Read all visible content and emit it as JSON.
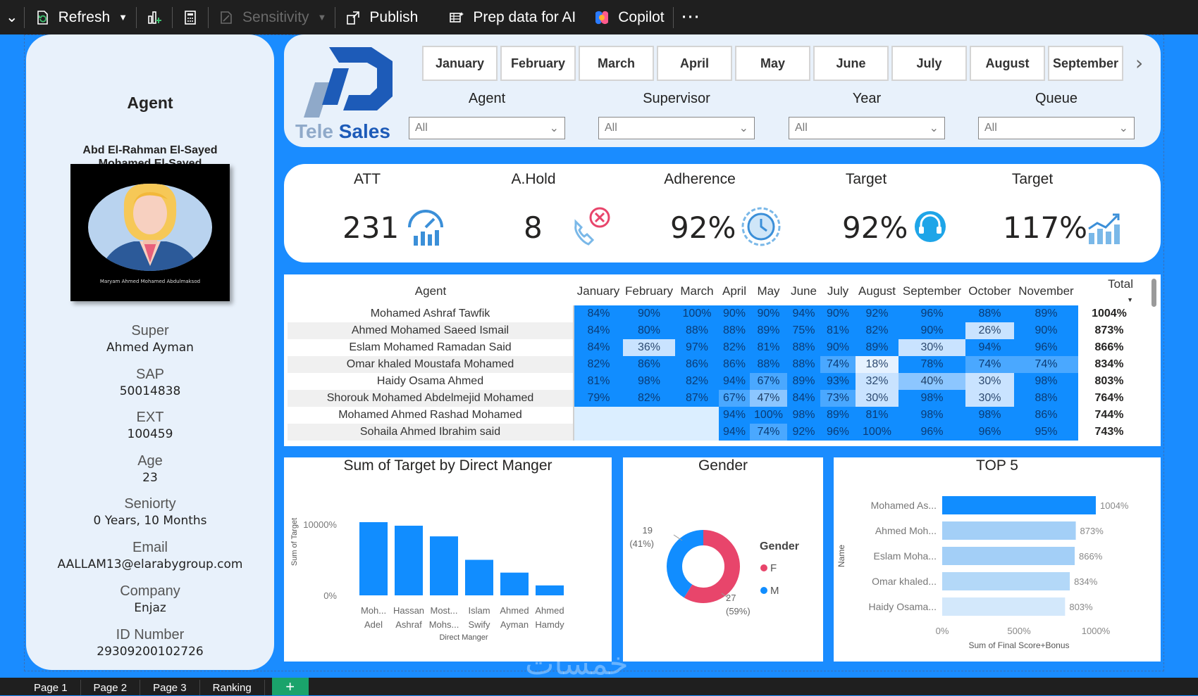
{
  "toolbar": {
    "refresh_label": "Refresh",
    "sensitivity_label": "Sensitivity",
    "publish_label": "Publish",
    "prep_label": "Prep data for AI",
    "copilot_label": "Copilot",
    "more_label": "···"
  },
  "agent": {
    "title": "Agent",
    "name_line1": "Abd El-Rahman El-Sayed",
    "name_line2": "Mohamed El-Sayed",
    "photo_caption": "Maryam Ahmed Mohamed Abdulmaksod",
    "fields": [
      {
        "label": "Super",
        "value": "Ahmed Ayman"
      },
      {
        "label": "SAP",
        "value": "50014838"
      },
      {
        "label": "EXT",
        "value": "100459"
      },
      {
        "label": "Age",
        "value": "23"
      },
      {
        "label": "Seniorty",
        "value": "0 Years, 10 Months"
      },
      {
        "label": "Email",
        "value": "AALLAM13@elarabygroup.com"
      },
      {
        "label": "Company",
        "value": "Enjaz"
      },
      {
        "label": "ID Number",
        "value": "29309200102726"
      }
    ]
  },
  "header": {
    "logo_text_1": "Tele",
    "logo_text_2": "Sales",
    "months": [
      "January",
      "February",
      "March",
      "April",
      "May",
      "June",
      "July",
      "August",
      "September"
    ],
    "slicers": [
      {
        "label": "Agent",
        "value": "All"
      },
      {
        "label": "Supervisor",
        "value": "All"
      },
      {
        "label": "Year",
        "value": "All"
      },
      {
        "label": "Queue",
        "value": "All"
      }
    ]
  },
  "kpis": [
    {
      "label": "ATT",
      "value": "231",
      "icon": "speedometer-icon"
    },
    {
      "label": "A.Hold",
      "value": "8",
      "icon": "phone-hold-icon"
    },
    {
      "label": "Adherence",
      "value": "92%",
      "icon": "clock-cycle-icon"
    },
    {
      "label": "Target",
      "value": "92%",
      "icon": "headset-icon"
    },
    {
      "label": "Target",
      "value": "117%",
      "icon": "growth-chart-icon"
    }
  ],
  "matrix": {
    "agent_header": "Agent",
    "months": [
      "January",
      "February",
      "March",
      "April",
      "May",
      "June",
      "July",
      "August",
      "September",
      "October",
      "November"
    ],
    "total_header": "Total",
    "rows": [
      {
        "agent": "Mohamed Ashraf Tawfik",
        "values": [
          "84%",
          "90%",
          "100%",
          "90%",
          "90%",
          "94%",
          "90%",
          "92%",
          "96%",
          "88%",
          "89%"
        ],
        "total": "1004%"
      },
      {
        "agent": "Ahmed Mohamed Saeed Ismail",
        "values": [
          "84%",
          "80%",
          "88%",
          "88%",
          "89%",
          "75%",
          "81%",
          "82%",
          "90%",
          "26%",
          "90%"
        ],
        "total": "873%"
      },
      {
        "agent": "Eslam Mohamed Ramadan Said",
        "values": [
          "84%",
          "36%",
          "97%",
          "82%",
          "81%",
          "88%",
          "90%",
          "89%",
          "30%",
          "94%",
          "96%"
        ],
        "total": "866%"
      },
      {
        "agent": "Omar khaled Moustafa Mohamed",
        "values": [
          "82%",
          "86%",
          "86%",
          "86%",
          "88%",
          "88%",
          "74%",
          "18%",
          "78%",
          "74%",
          "74%"
        ],
        "total": "834%"
      },
      {
        "agent": "Haidy Osama Ahmed",
        "values": [
          "81%",
          "98%",
          "82%",
          "94%",
          "67%",
          "89%",
          "93%",
          "32%",
          "40%",
          "30%",
          "98%"
        ],
        "total": "803%"
      },
      {
        "agent": "Shorouk Mohamed Abdelmejid Mohamed",
        "values": [
          "79%",
          "82%",
          "87%",
          "67%",
          "47%",
          "84%",
          "73%",
          "30%",
          "98%",
          "30%",
          "88%"
        ],
        "total": "764%"
      },
      {
        "agent": "Mohamed Ahmed Rashad Mohamed",
        "values": [
          "",
          "",
          "",
          "94%",
          "100%",
          "98%",
          "89%",
          "81%",
          "98%",
          "98%",
          "86%"
        ],
        "total": "744%"
      },
      {
        "agent": "Sohaila Ahmed Ibrahim said",
        "values": [
          "",
          "",
          "",
          "94%",
          "74%",
          "92%",
          "96%",
          "100%",
          "96%",
          "96%",
          "95%"
        ],
        "total": "743%"
      }
    ]
  },
  "chart_data": [
    {
      "type": "bar",
      "title": "Sum of Target by Direct Manger",
      "xlabel": "Direct Manger",
      "ylabel": "Sum of Target",
      "categories": [
        [
          "Moh...",
          "Adel"
        ],
        [
          "Hassan",
          "Ashraf"
        ],
        [
          "Most...",
          "Mohs..."
        ],
        [
          "Islam",
          "Swify"
        ],
        [
          "Ahmed",
          "Ayman"
        ],
        [
          "Ahmed",
          "Hamdy"
        ]
      ],
      "values": [
        10300,
        9800,
        8300,
        5000,
        3200,
        1400
      ],
      "yticks": [
        "0%",
        "10000%"
      ],
      "ylim": [
        0,
        10000
      ],
      "color": "#118dff"
    },
    {
      "type": "pie",
      "title": "Gender",
      "legend_title": "Gender",
      "slices": [
        {
          "name": "F",
          "value": 27,
          "label": "27",
          "pct": "(59%)",
          "color": "#e8456b"
        },
        {
          "name": "M",
          "value": 19,
          "label": "19",
          "pct": "(41%)",
          "color": "#118dff"
        }
      ]
    },
    {
      "type": "bar",
      "orientation": "horizontal",
      "title": "TOP 5",
      "xlabel": "Sum of Final Score+Bonus",
      "ylabel": "Name",
      "categories": [
        "Mohamed As...",
        "Ahmed Moh...",
        "Eslam Moha...",
        "Omar khaled...",
        "Haidy Osama..."
      ],
      "values": [
        1004,
        873,
        866,
        834,
        803
      ],
      "value_labels": [
        "1004%",
        "873%",
        "866%",
        "834%",
        "803%"
      ],
      "xticks": [
        "0%",
        "500%",
        "1000%"
      ],
      "xlim": [
        0,
        1000
      ],
      "colors": [
        "#118dff",
        "#a3cff7",
        "#a3cff7",
        "#b3d8f8",
        "#d3e8fb"
      ]
    }
  ],
  "page_tabs": [
    "Page 1",
    "Page 2",
    "Page 3",
    "Ranking"
  ],
  "watermark": "خمسات"
}
